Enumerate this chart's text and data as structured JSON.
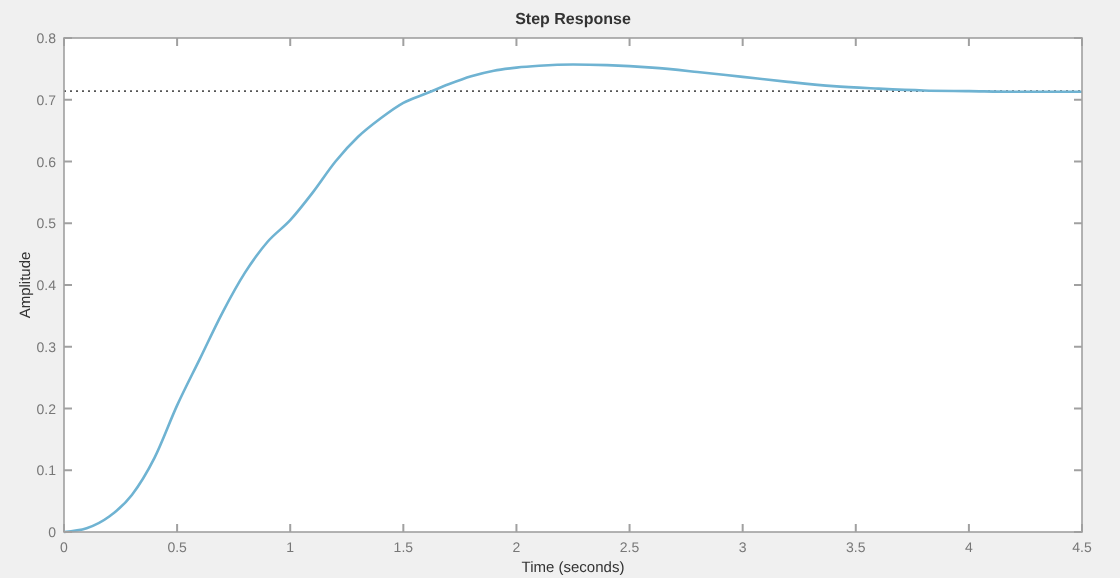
{
  "chart_data": {
    "type": "line",
    "title": "Step Response",
    "xlabel": "Time (seconds)",
    "ylabel": "Amplitude",
    "x": [
      0,
      0.1,
      0.2,
      0.3,
      0.4,
      0.5,
      0.6,
      0.7,
      0.8,
      0.9,
      1.0,
      1.1,
      1.2,
      1.3,
      1.4,
      1.5,
      1.6,
      1.7,
      1.8,
      1.9,
      2.0,
      2.1,
      2.25,
      2.4,
      2.6,
      2.8,
      3.0,
      3.2,
      3.4,
      3.6,
      3.8,
      4.0,
      4.2,
      4.5
    ],
    "series": [
      {
        "color": "#6fb3d2",
        "values": [
          0,
          0.006,
          0.025,
          0.06,
          0.12,
          0.205,
          0.28,
          0.355,
          0.42,
          0.47,
          0.505,
          0.55,
          0.6,
          0.64,
          0.67,
          0.695,
          0.71,
          0.725,
          0.738,
          0.747,
          0.752,
          0.755,
          0.757,
          0.756,
          0.752,
          0.745,
          0.737,
          0.729,
          0.722,
          0.718,
          0.715,
          0.714,
          0.713,
          0.713
        ]
      }
    ],
    "xlim": [
      0,
      4.5
    ],
    "ylim": [
      0,
      0.8
    ],
    "xticks": [
      0,
      0.5,
      1,
      1.5,
      2,
      2.5,
      3,
      3.5,
      4,
      4.5
    ],
    "yticks": [
      0,
      0.1,
      0.2,
      0.3,
      0.4,
      0.5,
      0.6,
      0.7,
      0.8
    ],
    "ref_lines": [
      {
        "axis": "y",
        "value": 0.714,
        "color": "#555555",
        "line_style": "dotted"
      }
    ],
    "grid": false
  }
}
